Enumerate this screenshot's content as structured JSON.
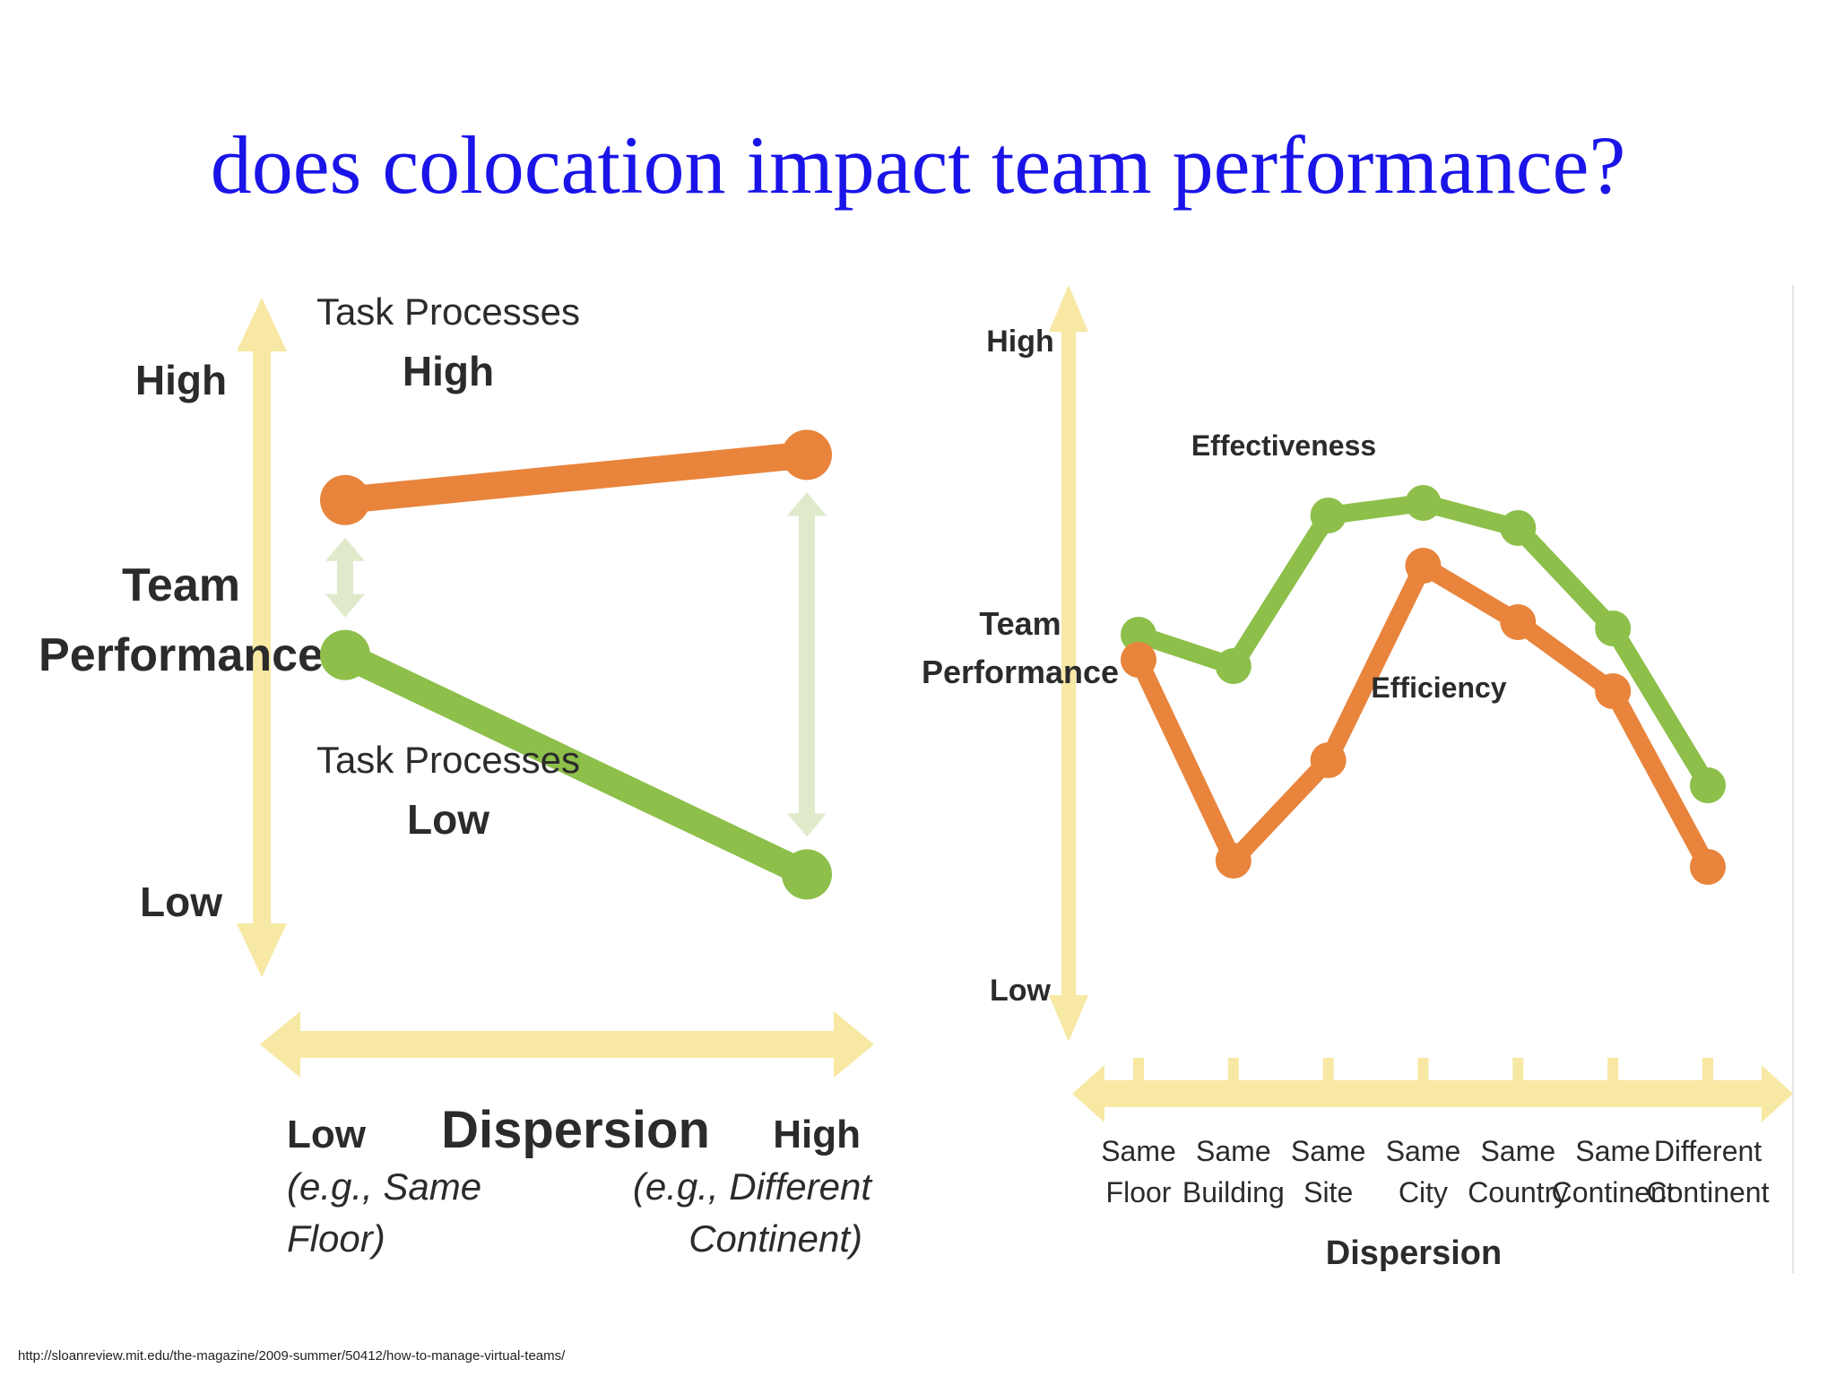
{
  "slide": {
    "title": "does colocation impact team performance?",
    "source_url": "http://sloanreview.mit.edu/the-magazine/2009-summer/50412/how-to-manage-virtual-teams/"
  },
  "colors": {
    "orange": "#e8843c",
    "green": "#8dbf4a",
    "arrow_yellow": "#f7e8a4",
    "arrow_green": "#dfeacb",
    "text": "#2b2b2b"
  },
  "chart_data": [
    {
      "type": "line",
      "y_axis": {
        "label_lines": [
          "Team",
          "Performance"
        ],
        "high_label": "High",
        "low_label": "Low"
      },
      "x_axis": {
        "label": "Dispersion",
        "low_label": "Low",
        "low_note_lines": [
          "(e.g., Same",
          "Floor)"
        ],
        "high_label": "High",
        "high_note_lines": [
          "(e.g., Different",
          "Continent)"
        ]
      },
      "categories": [
        "Low",
        "High"
      ],
      "ylim": [
        0,
        10
      ],
      "series": [
        {
          "name": "Task Processes High",
          "name_lines": [
            "Task Processes",
            "High"
          ],
          "color": "#e8843c",
          "values": [
            7.6,
            8.3
          ]
        },
        {
          "name": "Task Processes Low",
          "name_lines": [
            "Task Processes",
            "Low"
          ],
          "color": "#8dbf4a",
          "values": [
            5.2,
            1.8
          ]
        }
      ],
      "grid": false,
      "legend": "inline"
    },
    {
      "type": "line",
      "y_axis": {
        "label_lines": [
          "Team",
          "Performance"
        ],
        "high_label": "High",
        "low_label": "Low"
      },
      "x_axis": {
        "label": "Dispersion"
      },
      "categories": [
        [
          "Same",
          "Floor"
        ],
        [
          "Same",
          "Building"
        ],
        [
          "Same",
          "Site"
        ],
        [
          "Same",
          "City"
        ],
        [
          "Same",
          "Country"
        ],
        [
          "Same",
          "Continent"
        ],
        [
          "Different",
          "Continent"
        ]
      ],
      "ylim": [
        0,
        10
      ],
      "series": [
        {
          "name": "Effectiveness",
          "color": "#8dbf4a",
          "values": [
            5.6,
            5.1,
            7.5,
            7.7,
            7.3,
            5.7,
            3.2
          ]
        },
        {
          "name": "Efficiency",
          "color": "#e8843c",
          "values": [
            5.2,
            2.0,
            3.6,
            6.7,
            5.8,
            4.7,
            1.9
          ]
        }
      ],
      "grid": false,
      "legend": "inline"
    }
  ]
}
